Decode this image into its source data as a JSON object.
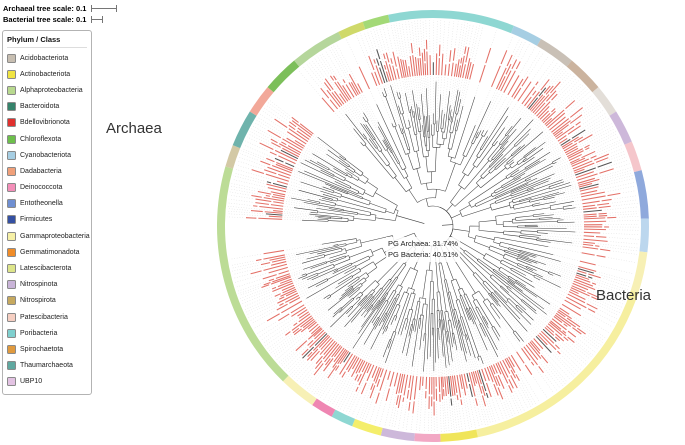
{
  "scales": {
    "archaeal_label": "Archaeal tree scale: 0.1",
    "bacterial_label": "Bacterial tree scale: 0.1"
  },
  "legend": {
    "title": "Phylum / Class",
    "items": [
      {
        "label": "Acidobacteriota",
        "color": "#c7beb1"
      },
      {
        "label": "Actinobacteriota",
        "color": "#f0e442"
      },
      {
        "label": "Alphaproteobacteria",
        "color": "#b8d98f"
      },
      {
        "label": "Bacteroidota",
        "color": "#35836b"
      },
      {
        "label": "Bdellovibrionota",
        "color": "#e0302e"
      },
      {
        "label": "Chloroflexota",
        "color": "#6dbf4b"
      },
      {
        "label": "Cyanobacteriota",
        "color": "#a6cee3"
      },
      {
        "label": "Dadabacteria",
        "color": "#f0a07a"
      },
      {
        "label": "Deinococcota",
        "color": "#f48fb9"
      },
      {
        "label": "Entotheonella",
        "color": "#6f8fd2"
      },
      {
        "label": "Firmicutes",
        "color": "#3450a2"
      },
      {
        "label": "Gammaproteobacteria",
        "color": "#f6f0a6"
      },
      {
        "label": "Gemmatimonadota",
        "color": "#f08c28"
      },
      {
        "label": "Latescibacterota",
        "color": "#dde58a"
      },
      {
        "label": "Nitrospinota",
        "color": "#c9b4d8"
      },
      {
        "label": "Nitrospirota",
        "color": "#c6a95f"
      },
      {
        "label": "Patescibacteria",
        "color": "#f6cfc2"
      },
      {
        "label": "Poribacteria",
        "color": "#7fd0cf"
      },
      {
        "label": "Spirochaetota",
        "color": "#e09a3e"
      },
      {
        "label": "Thaumarchaeota",
        "color": "#5fa8a0"
      },
      {
        "label": "UBP10",
        "color": "#e3c3e3"
      }
    ]
  },
  "annotations": {
    "archaea": "Archaea",
    "bacteria": "Bacteria"
  },
  "chart_data": {
    "type": "circular_phylogenetic_tree",
    "center_annotations": [
      "PG Archaea: 31.74%",
      "PG Bacteria: 40.51%"
    ],
    "archaeal_tree_scale": 0.1,
    "bacterial_tree_scale": 0.1,
    "tip_label_color": "#e2685f",
    "branch_color": "#3f3f3f",
    "guide_line_color": "#d4d4d4",
    "domains": [
      {
        "name": "Archaea",
        "angle_start_deg": 272,
        "angle_end_deg": 308
      },
      {
        "name": "Bacteria",
        "angle_start_deg": 318,
        "angle_end_deg": 622
      }
    ],
    "ring_segments": [
      {
        "start": 348,
        "end": 382,
        "color": "#8ed7d2"
      },
      {
        "start": 22,
        "end": 30,
        "color": "#a6cee3"
      },
      {
        "start": 30,
        "end": 40,
        "color": "#c9c0b6"
      },
      {
        "start": 40,
        "end": 50,
        "color": "#cbb39e"
      },
      {
        "start": 50,
        "end": 58,
        "color": "#e3ded8"
      },
      {
        "start": 58,
        "end": 67,
        "color": "#cdb8da"
      },
      {
        "start": 67,
        "end": 75,
        "color": "#f5c6cb"
      },
      {
        "start": 75,
        "end": 88,
        "color": "#8fa9dc"
      },
      {
        "start": 88,
        "end": 97,
        "color": "#bcd7ee"
      },
      {
        "start": 97,
        "end": 108,
        "color": "#f7f0b5"
      },
      {
        "start": 108,
        "end": 168,
        "color": "#f6ef9f"
      },
      {
        "start": 168,
        "end": 178,
        "color": "#f0e55a"
      },
      {
        "start": 178,
        "end": 185,
        "color": "#f2a8c4"
      },
      {
        "start": 185,
        "end": 194,
        "color": "#cdb8da"
      },
      {
        "start": 194,
        "end": 202,
        "color": "#f4ee6b"
      },
      {
        "start": 202,
        "end": 208,
        "color": "#8ed7d2"
      },
      {
        "start": 208,
        "end": 214,
        "color": "#ef86b2"
      },
      {
        "start": 214,
        "end": 224,
        "color": "#f7f0b5"
      },
      {
        "start": 224,
        "end": 286,
        "color": "#bcdc96"
      },
      {
        "start": 286,
        "end": 292,
        "color": "#d3c9a5"
      },
      {
        "start": 292,
        "end": 302,
        "color": "#6fb3ac"
      },
      {
        "start": 302,
        "end": 310,
        "color": "#f2a899"
      },
      {
        "start": 310,
        "end": 320,
        "color": "#7cbf5a"
      },
      {
        "start": 320,
        "end": 334,
        "color": "#b5d69b"
      },
      {
        "start": 334,
        "end": 341,
        "color": "#cfd96a"
      },
      {
        "start": 341,
        "end": 348,
        "color": "#a3d977"
      }
    ]
  }
}
